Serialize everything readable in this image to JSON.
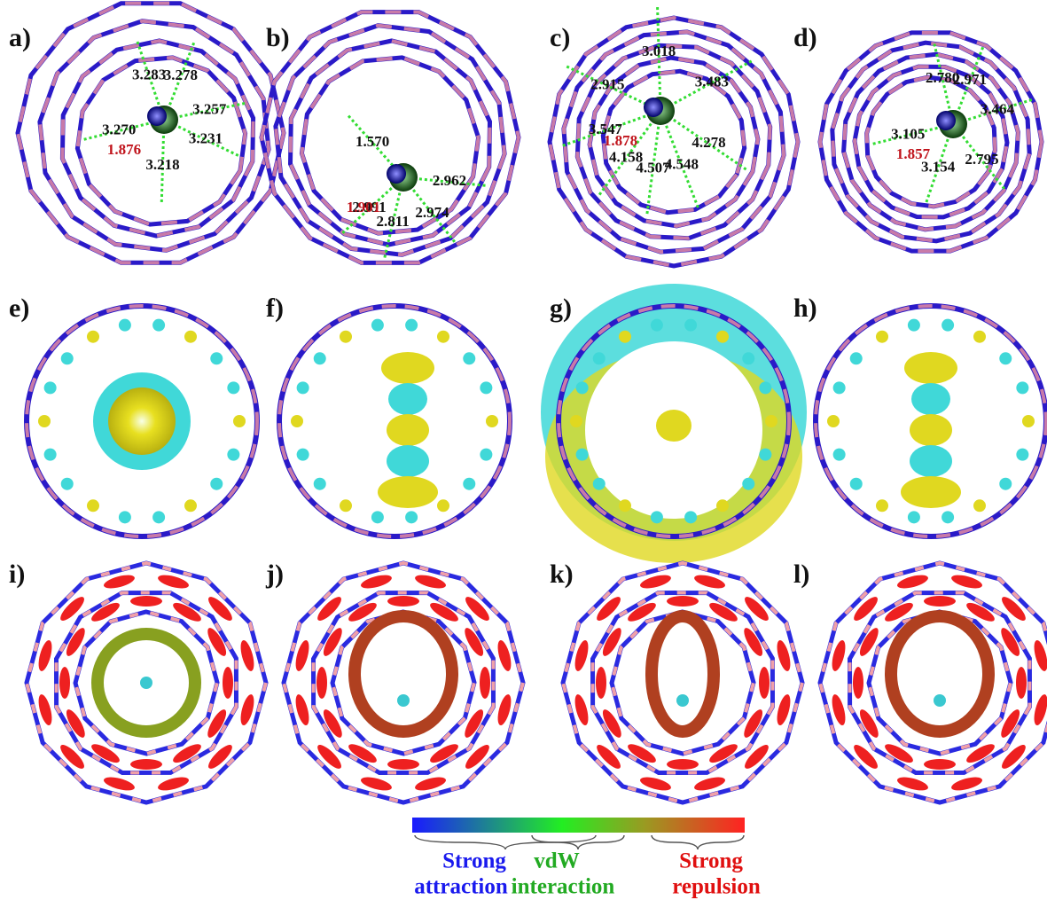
{
  "panels_top": [
    {
      "label": "a)",
      "distances": [
        "3.283",
        "3.278",
        "3.257",
        "3.231",
        "3.218",
        "3.270"
      ],
      "bond": "1.876"
    },
    {
      "label": "b)",
      "distances": [
        "1.570",
        "2.962",
        "2.974",
        "2.811",
        "2.991"
      ],
      "bond": "1.901"
    },
    {
      "label": "c)",
      "distances": [
        "3.018",
        "3.483",
        "4.278",
        "4.548",
        "4.507",
        "4.158",
        "3.547",
        "2.915"
      ],
      "bond": "1.878"
    },
    {
      "label": "d)",
      "distances": [
        "2.780",
        "2.971",
        "3.464",
        "2.795",
        "3.154",
        "3.105"
      ],
      "bond": "1.857"
    }
  ],
  "panels_middle": [
    {
      "label": "e)"
    },
    {
      "label": "f)"
    },
    {
      "label": "g)"
    },
    {
      "label": "h)"
    }
  ],
  "panels_bottom": [
    {
      "label": "i)"
    },
    {
      "label": "j)"
    },
    {
      "label": "k)"
    },
    {
      "label": "l)"
    }
  ],
  "legend": {
    "attraction": [
      "Strong",
      "attraction"
    ],
    "vdw": [
      "vdW",
      "interaction"
    ],
    "repulsion": [
      "Strong",
      "repulsion"
    ]
  }
}
